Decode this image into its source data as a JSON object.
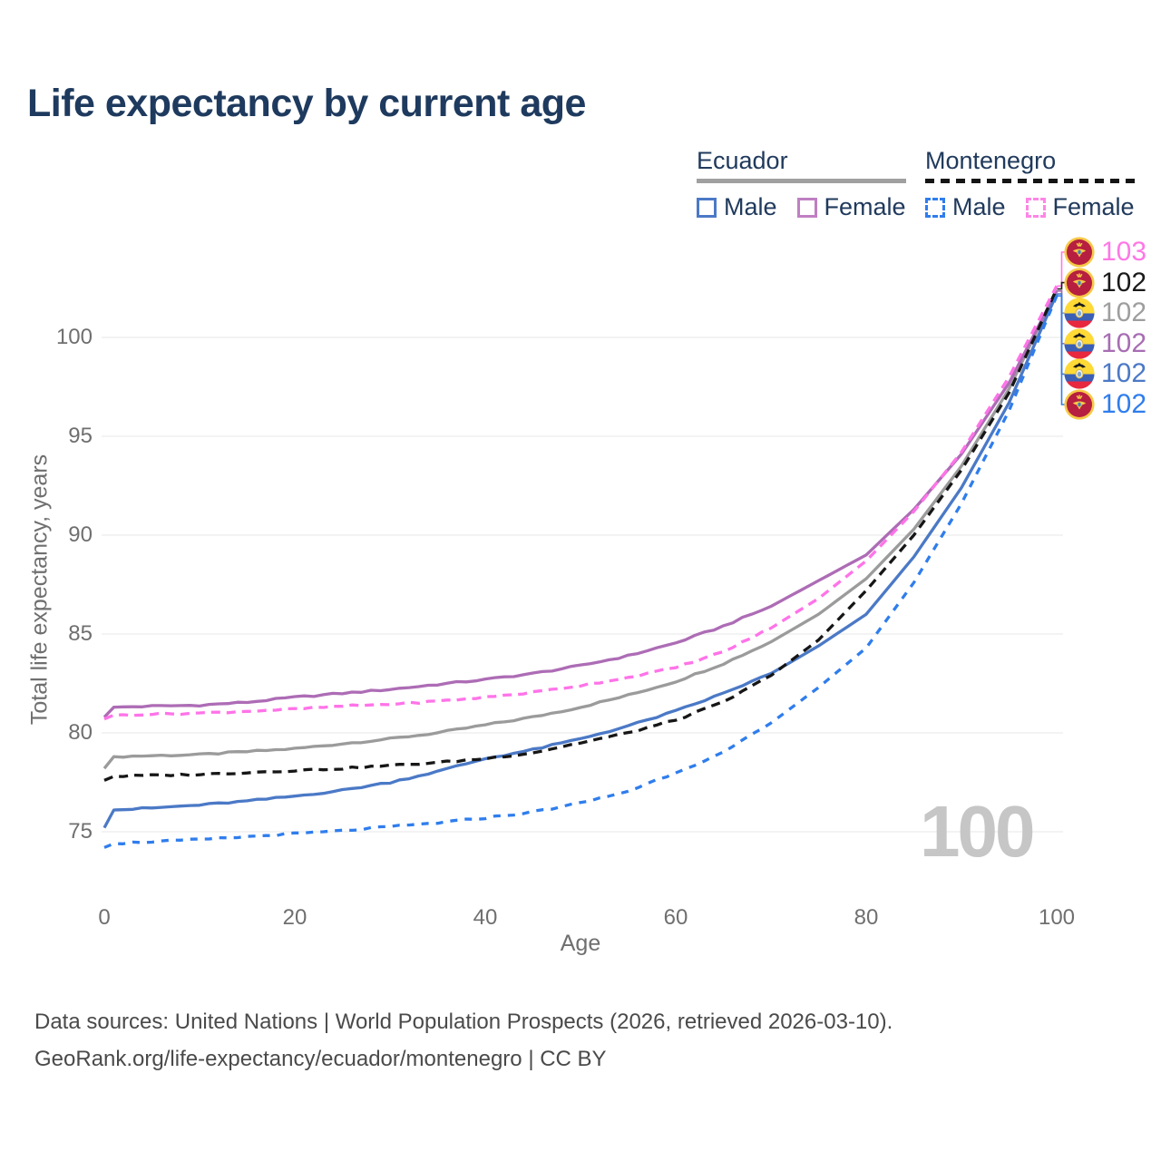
{
  "title": "Life expectancy by current age",
  "watermark": "100",
  "footer": {
    "line1": "Data sources: United Nations | World Population Prospects (2026, retrieved 2026-03-10).",
    "line2": "GeoRank.org/life-expectancy/ecuador/montenegro | CC BY"
  },
  "legend": {
    "groups": [
      {
        "label": "Ecuador",
        "underline_style": "solid",
        "items": [
          {
            "label": "Male",
            "color": "#4b79c6",
            "dashed": false
          },
          {
            "label": "Female",
            "color": "#bf7fc2",
            "dashed": false
          }
        ]
      },
      {
        "label": "Montenegro",
        "underline_style": "dashed",
        "items": [
          {
            "label": "Male",
            "color": "#2f7ded",
            "dashed": true
          },
          {
            "label": "Female",
            "color": "#ff85e6",
            "dashed": true
          }
        ]
      }
    ]
  },
  "chart_data": {
    "type": "line",
    "title": "Life expectancy by current age",
    "xlabel": "Age",
    "ylabel": "Total life expectancy, years",
    "x_ticks": [
      0,
      20,
      40,
      60,
      80,
      100
    ],
    "y_ticks": [
      75,
      80,
      85,
      90,
      95,
      100
    ],
    "xlim": [
      0,
      100
    ],
    "ylim": [
      73.5,
      103.5
    ],
    "grid": "horizontal",
    "legend_position": "top-right",
    "x": [
      0,
      1,
      5,
      10,
      15,
      20,
      25,
      30,
      35,
      40,
      45,
      50,
      55,
      60,
      65,
      70,
      75,
      80,
      85,
      90,
      95,
      100
    ],
    "series": [
      {
        "id": "ecuador_total",
        "country": "Ecuador",
        "group": "Total",
        "color": "#9b9b9b",
        "dash": null,
        "values": [
          78.2,
          78.8,
          78.85,
          78.9,
          79.05,
          79.2,
          79.45,
          79.7,
          80.0,
          80.4,
          80.8,
          81.3,
          81.9,
          82.6,
          83.5,
          84.6,
          86.0,
          87.8,
          90.3,
          93.5,
          97.4,
          102.4
        ]
      },
      {
        "id": "ecuador_female",
        "country": "Ecuador",
        "group": "Female",
        "color": "#ad6cb5",
        "dash": null,
        "values": [
          80.8,
          81.3,
          81.35,
          81.4,
          81.55,
          81.8,
          82.0,
          82.2,
          82.45,
          82.7,
          83.0,
          83.4,
          83.9,
          84.55,
          85.4,
          86.4,
          87.7,
          89.0,
          91.3,
          94.1,
          97.7,
          102.35
        ]
      },
      {
        "id": "ecuador_male",
        "country": "Ecuador",
        "group": "Male",
        "color": "#4b79c6",
        "dash": null,
        "values": [
          75.2,
          76.1,
          76.2,
          76.35,
          76.55,
          76.8,
          77.1,
          77.5,
          78.05,
          78.7,
          79.15,
          79.7,
          80.35,
          81.1,
          82.0,
          83.0,
          84.4,
          86.0,
          88.9,
          92.4,
          96.7,
          102.2
        ]
      },
      {
        "id": "montenegro_total",
        "country": "Montenegro",
        "group": "Total",
        "color": "#161616",
        "dash": "10 7",
        "values": [
          77.6,
          77.8,
          77.85,
          77.9,
          78.0,
          78.1,
          78.2,
          78.35,
          78.5,
          78.7,
          79.0,
          79.5,
          80.0,
          80.65,
          81.55,
          82.9,
          84.7,
          87.2,
          90.0,
          93.3,
          97.2,
          102.45
        ]
      },
      {
        "id": "montenegro_female",
        "country": "Montenegro",
        "group": "Female",
        "color": "#ff73e8",
        "dash": "10 7",
        "values": [
          80.7,
          80.9,
          80.95,
          81.0,
          81.1,
          81.2,
          81.35,
          81.45,
          81.6,
          81.8,
          82.05,
          82.4,
          82.8,
          83.3,
          84.1,
          85.3,
          86.8,
          88.7,
          91.2,
          94.2,
          98.0,
          102.6
        ]
      },
      {
        "id": "montenegro_male",
        "country": "Montenegro",
        "group": "Male",
        "color": "#2f7ded",
        "dash": "8 8",
        "values": [
          74.2,
          74.4,
          74.5,
          74.6,
          74.75,
          74.9,
          75.05,
          75.25,
          75.45,
          75.7,
          76.0,
          76.45,
          77.05,
          78.0,
          79.0,
          80.5,
          82.3,
          84.3,
          87.6,
          91.6,
          96.3,
          102.1
        ]
      }
    ],
    "end_labels": [
      {
        "series": "montenegro_female",
        "flag": "montenegro",
        "value": "103",
        "color": "#ff77e6"
      },
      {
        "series": "montenegro_total",
        "flag": "montenegro",
        "value": "102",
        "color": "#1a1a1a"
      },
      {
        "series": "ecuador_total",
        "flag": "ecuador",
        "value": "102",
        "color": "#9e9e9e"
      },
      {
        "series": "ecuador_female",
        "flag": "ecuador",
        "value": "102",
        "color": "#a76db3"
      },
      {
        "series": "ecuador_male",
        "flag": "ecuador",
        "value": "102",
        "color": "#4b79c6"
      },
      {
        "series": "montenegro_male",
        "flag": "montenegro",
        "value": "102",
        "color": "#2f7ded"
      }
    ]
  }
}
